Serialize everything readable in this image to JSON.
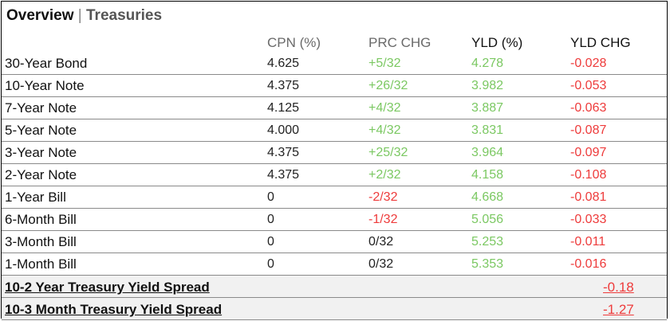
{
  "header": {
    "title": "Overview",
    "separator": "|",
    "subtitle": "Treasuries"
  },
  "columns": {
    "cpn": "CPN (%)",
    "prc": "PRC CHG",
    "yld": "YLD (%)",
    "ychg": "YLD CHG"
  },
  "rows": [
    {
      "name": "30-Year Bond",
      "cpn": "4.625",
      "prc": "+5/32",
      "yld": "4.278",
      "ychg": "-0.028"
    },
    {
      "name": "10-Year Note",
      "cpn": "4.375",
      "prc": "+26/32",
      "yld": "3.982",
      "ychg": "-0.053"
    },
    {
      "name": "7-Year Note",
      "cpn": "4.125",
      "prc": "+4/32",
      "yld": "3.887",
      "ychg": "-0.063"
    },
    {
      "name": "5-Year Note",
      "cpn": "4.000",
      "prc": "+4/32",
      "yld": "3.831",
      "ychg": "-0.087"
    },
    {
      "name": "3-Year Note",
      "cpn": "4.375",
      "prc": "+25/32",
      "yld": "3.964",
      "ychg": "-0.097"
    },
    {
      "name": "2-Year Note",
      "cpn": "4.375",
      "prc": "+2/32",
      "yld": "4.158",
      "ychg": "-0.108"
    },
    {
      "name": "1-Year Bill",
      "cpn": "0",
      "prc": "-2/32",
      "yld": "4.668",
      "ychg": "-0.081"
    },
    {
      "name": "6-Month Bill",
      "cpn": "0",
      "prc": "-1/32",
      "yld": "5.056",
      "ychg": "-0.033"
    },
    {
      "name": "3-Month Bill",
      "cpn": "0",
      "prc": "0/32",
      "yld": "5.253",
      "ychg": "-0.011"
    },
    {
      "name": "1-Month Bill",
      "cpn": "0",
      "prc": "0/32",
      "yld": "5.353",
      "ychg": "-0.016"
    }
  ],
  "spreads": [
    {
      "label": "10-2 Year Treasury Yield Spread",
      "value": "-0.18"
    },
    {
      "label": "10-3 Month Treasury Yield Spread",
      "value": "-1.27"
    }
  ],
  "colors": {
    "positive": "#7bc862",
    "negative": "#ee3b3b",
    "neutral": "#222222"
  }
}
